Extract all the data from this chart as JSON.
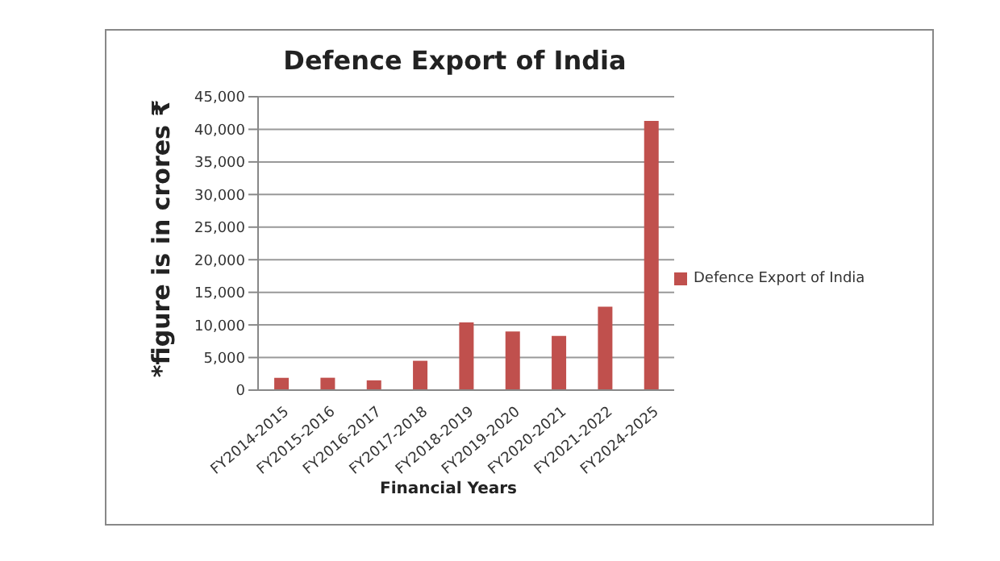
{
  "chart_data": {
    "type": "bar",
    "title": "Defence Export of India",
    "xlabel": "Financial Years",
    "ylabel": "*figure is in crores ₹",
    "categories": [
      "FY2014-2015",
      "FY2015-2016",
      "FY2016-2017",
      "FY2017-2018",
      "FY2018-2019",
      "FY2019-2020",
      "FY2020-2021",
      "FY2021-2022",
      "FY2024-2025"
    ],
    "series": [
      {
        "name": "Defence Export of India",
        "color": "#c0504d",
        "values": [
          1900,
          1900,
          1500,
          4500,
          10400,
          9000,
          8300,
          12800,
          41300
        ]
      }
    ],
    "ylim": [
      0,
      45000
    ],
    "yticks": [
      0,
      {
        "value": 5000,
        "label": "5,000"
      },
      {
        "value": 10000,
        "label": "10,000"
      },
      {
        "value": 15000,
        "label": "15,000"
      },
      {
        "value": 20000,
        "label": "20,000"
      },
      {
        "value": 25000,
        "label": "25,000"
      },
      {
        "value": 30000,
        "label": "30,000"
      },
      {
        "value": 35000,
        "label": "35,000"
      },
      {
        "value": 40000,
        "label": "40,000"
      },
      {
        "value": 45000,
        "label": "45,000"
      }
    ],
    "grid": "y",
    "legend": "right"
  }
}
